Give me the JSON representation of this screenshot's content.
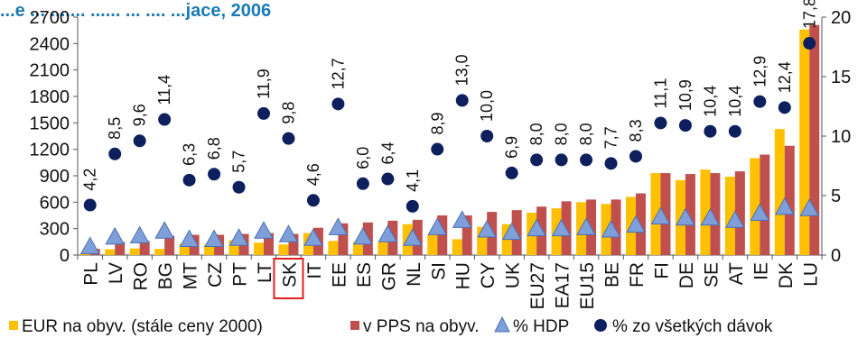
{
  "chart_data": {
    "type": "bar",
    "title": "",
    "title_partial": "...e ... ....... ...... ... .... ...jace, 2006",
    "categories": [
      "PL",
      "LV",
      "RO",
      "BG",
      "MT",
      "CZ",
      "PT",
      "LT",
      "SK",
      "IT",
      "EE",
      "ES",
      "GR",
      "NL",
      "SI",
      "HU",
      "CY",
      "UK",
      "EU27",
      "EA17",
      "EU15",
      "BE",
      "FR",
      "FI",
      "DE",
      "SE",
      "AT",
      "IE",
      "DK",
      "LU"
    ],
    "highlight_category": "SK",
    "y_left": {
      "min": 0,
      "max": 2700,
      "ticks": [
        0,
        300,
        600,
        900,
        1200,
        1500,
        1800,
        2100,
        2400,
        2700
      ]
    },
    "y_right": {
      "min": 0,
      "max": 20,
      "ticks": [
        0,
        5,
        10,
        15,
        20
      ]
    },
    "series": [
      {
        "name": "EUR na obyv. (stále ceny 2000)",
        "kind": "bar",
        "axis": "left",
        "color": "#ffc000",
        "values": [
          20,
          65,
          75,
          70,
          130,
          120,
          170,
          140,
          120,
          250,
          160,
          150,
          150,
          350,
          230,
          180,
          320,
          350,
          480,
          530,
          600,
          580,
          660,
          930,
          850,
          970,
          890,
          1100,
          1430,
          2560
        ]
      },
      {
        "name": "v PPS na obyv.",
        "kind": "bar",
        "axis": "left",
        "color": "#c0504d",
        "values": [
          70,
          150,
          160,
          220,
          230,
          230,
          240,
          250,
          240,
          310,
          360,
          370,
          390,
          400,
          450,
          450,
          490,
          510,
          550,
          610,
          630,
          630,
          700,
          930,
          920,
          930,
          950,
          1140,
          1240,
          2610
        ]
      },
      {
        "name": "% HDP",
        "kind": "marker",
        "marker": "triangle",
        "axis": "right",
        "color": "#7f9fd8",
        "values": [
          0.8,
          1.6,
          1.7,
          2.1,
          1.4,
          1.4,
          1.5,
          2.1,
          1.8,
          1.5,
          2.4,
          1.6,
          1.8,
          1.5,
          2.4,
          3.0,
          2.2,
          2.0,
          2.3,
          2.3,
          2.4,
          2.2,
          2.6,
          3.3,
          3.2,
          3.2,
          3.0,
          3.6,
          4.1,
          4.0
        ]
      },
      {
        "name": "% zo všetkých dávok",
        "kind": "marker",
        "marker": "circle",
        "axis": "right",
        "color": "#0d1f5c",
        "values": [
          4.2,
          8.5,
          9.6,
          11.4,
          6.3,
          6.8,
          5.7,
          11.9,
          9.8,
          4.6,
          12.7,
          6.0,
          6.4,
          4.1,
          8.9,
          13.0,
          10.0,
          6.9,
          8.0,
          8.0,
          8.0,
          7.7,
          8.3,
          11.1,
          10.9,
          10.4,
          10.4,
          12.9,
          12.4,
          17.8
        ],
        "labels": [
          "4,2",
          "8,5",
          "9,6",
          "11,4",
          "6,3",
          "6,8",
          "5,7",
          "11,9",
          "9,8",
          "4,6",
          "12,7",
          "6,0",
          "6,4",
          "4,1",
          "8,9",
          "13,0",
          "10,0",
          "6,9",
          "8,0",
          "8,0",
          "8,0",
          "7,7",
          "8,3",
          "11,1",
          "10,9",
          "10,4",
          "10,4",
          "12,9",
          "12,4",
          "17,8"
        ]
      }
    ],
    "legend_position": "bottom",
    "grid": false
  }
}
